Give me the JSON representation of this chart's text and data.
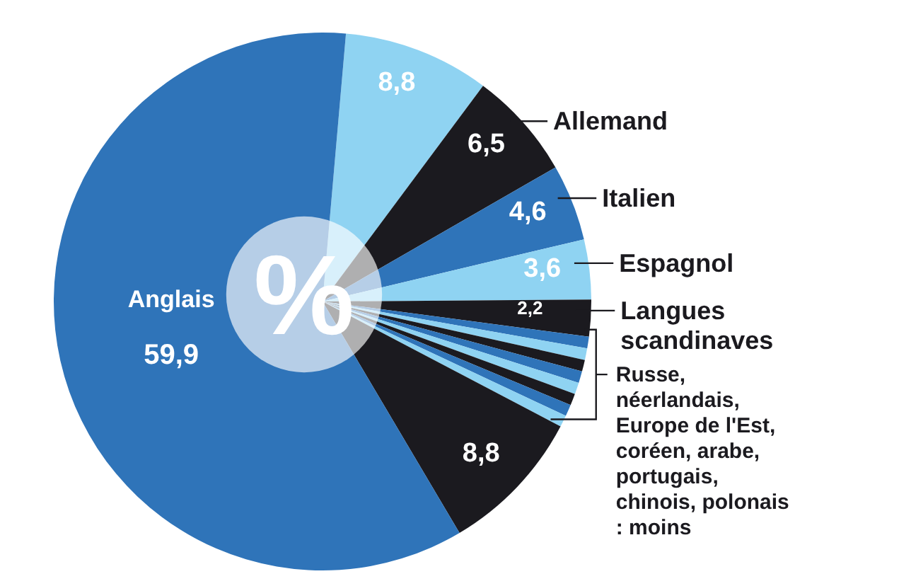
{
  "chart_data": {
    "type": "pie",
    "categories": [
      null,
      "Allemand",
      "Italien",
      "Espagnol",
      "Langues scandinaves",
      null,
      null,
      null,
      null,
      null,
      null,
      null,
      null,
      null,
      "Anglais"
    ],
    "values": [
      8.8,
      6.5,
      4.6,
      3.6,
      2.2,
      0.7,
      0.7,
      0.7,
      0.7,
      0.7,
      0.7,
      0.7,
      0.7,
      8.8,
      59.9
    ],
    "value_labels": [
      "8,8",
      "6,5",
      "4,6",
      "3,6",
      "2,2",
      null,
      null,
      null,
      null,
      null,
      null,
      null,
      null,
      "8,8",
      "59,9"
    ],
    "colors": [
      "#8fd3f2",
      "#1b1a1f",
      "#2f74b9",
      "#8fd3f2",
      "#1b1a1f",
      "#2f74b9",
      "#8fd3f2",
      "#1b1a1f",
      "#2f74b9",
      "#8fd3f2",
      "#1b1a1f",
      "#2f74b9",
      "#8fd3f2",
      "#1b1a1f",
      "#2f74b9"
    ],
    "annotations": [
      "%",
      "Russe, néerlandais, Europe de l'Est, coréen, arabe, portugais, chinois, polonais : moins"
    ]
  }
}
